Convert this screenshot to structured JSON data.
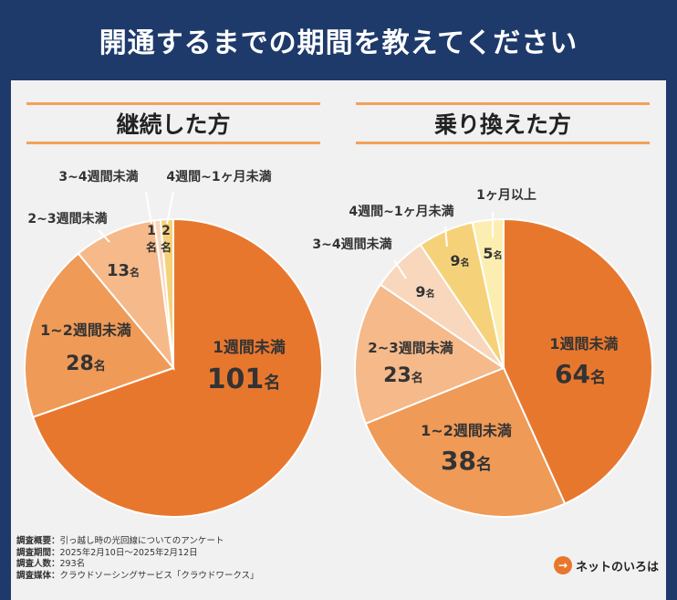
{
  "title": "開通するまでの期間を教えてください",
  "chart_data": [
    {
      "type": "pie",
      "title": "継続した方",
      "unit": "名",
      "slices": [
        {
          "label": "1週間未満",
          "value": 101,
          "color": "#e8772e",
          "text_color": "#333333"
        },
        {
          "label": "1~2週間未満",
          "value": 28,
          "color": "#ef9a57",
          "text_color": "#333333"
        },
        {
          "label": "2~3週間未満",
          "value": 13,
          "color": "#f5b98a",
          "text_color": "#333333"
        },
        {
          "label": "3~4週間未満",
          "value": 1,
          "color": "#f8d7bd",
          "text_color": "#333333"
        },
        {
          "label": "4週間~1ヶ月未満",
          "value": 2,
          "color": "#f5d27a",
          "text_color": "#333333"
        }
      ]
    },
    {
      "type": "pie",
      "title": "乗り換えた方",
      "unit": "名",
      "slices": [
        {
          "label": "1週間未満",
          "value": 64,
          "color": "#e8772e",
          "text_color": "#333333"
        },
        {
          "label": "1~2週間未満",
          "value": 38,
          "color": "#ef9a57",
          "text_color": "#333333"
        },
        {
          "label": "2~3週間未満",
          "value": 23,
          "color": "#f5b98a",
          "text_color": "#333333"
        },
        {
          "label": "3~4週間未満",
          "value": 9,
          "color": "#f8d7bd",
          "text_color": "#333333"
        },
        {
          "label": "4週間~1ヶ月未満",
          "value": 9,
          "color": "#f5d27a",
          "text_color": "#333333"
        },
        {
          "label": "1ヶ月以上",
          "value": 5,
          "color": "#fbeeb0",
          "text_color": "#333333"
        }
      ]
    }
  ],
  "survey": {
    "overview_label": "調査概要：",
    "overview": "引っ越し時の光回線についてのアンケート",
    "period_label": "調査期間：",
    "period": "2025年2月10日〜2025年2月12日",
    "people_label": "調査人数：",
    "people": "293名",
    "media_label": "調査媒体：",
    "media": "クラウドソーシングサービス「クラウドワークス」"
  },
  "logo": {
    "mark": "→",
    "text": "ネットのいろは"
  },
  "colors": {
    "banner": "#1e3a6b",
    "accent": "#e8772e",
    "rule": "#f2a25a"
  }
}
